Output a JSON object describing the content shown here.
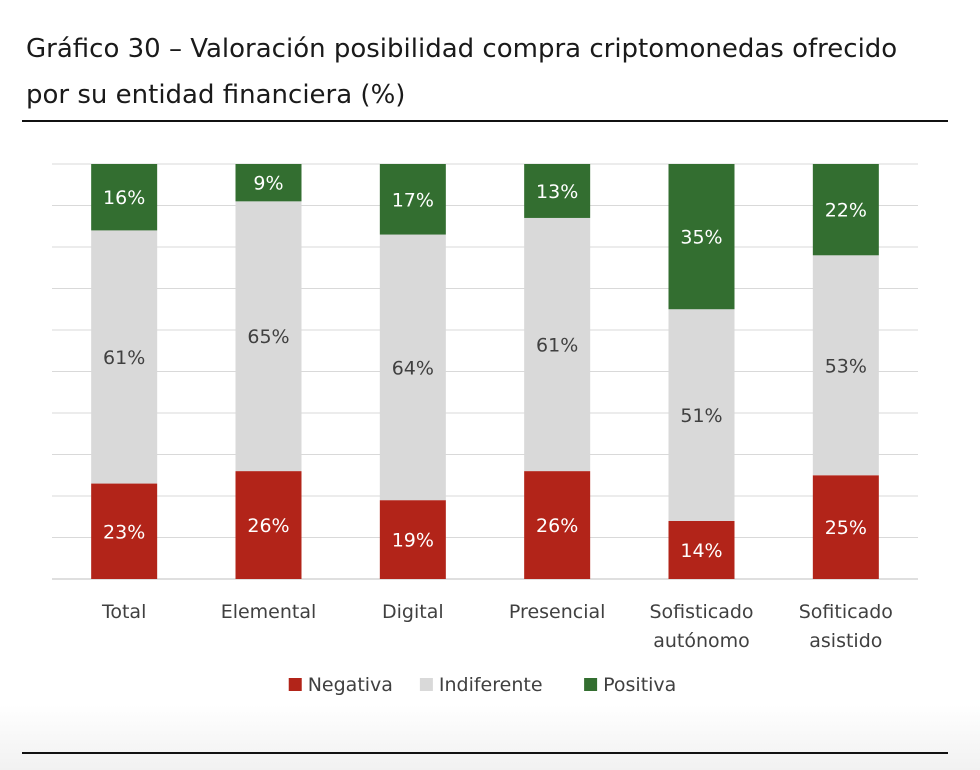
{
  "title": "Gráfico 30 – Valoración posibilidad compra criptomonedas ofrecido por su entidad financiera (%)",
  "chart_data": {
    "type": "bar",
    "stacked": true,
    "title": "Gráfico 30 – Valoración posibilidad compra criptomonedas ofrecido por su entidad financiera (%)",
    "categories": [
      [
        "Total"
      ],
      [
        "Elemental"
      ],
      [
        "Digital"
      ],
      [
        "Presencial"
      ],
      [
        "Sofisticado",
        "autónomo"
      ],
      [
        "Sofiticado",
        "asistido"
      ]
    ],
    "series": [
      {
        "name": "Negativa",
        "color": "#b22419",
        "values": [
          23,
          26,
          19,
          26,
          14,
          25
        ],
        "labels": [
          "23%",
          "26%",
          "19%",
          "26%",
          "14%",
          "25%"
        ]
      },
      {
        "name": "Indiferente",
        "color": "#d9d9d9",
        "values": [
          61,
          65,
          64,
          61,
          51,
          53
        ],
        "labels": [
          "61%",
          "65%",
          "64%",
          "61%",
          "51%",
          "53%"
        ]
      },
      {
        "name": "Positiva",
        "color": "#336e30",
        "values": [
          16,
          9,
          17,
          13,
          35,
          22
        ],
        "labels": [
          "16%",
          "9%",
          "17%",
          "13%",
          "35%",
          "22%"
        ]
      }
    ],
    "ylim": [
      0,
      100
    ],
    "grid": true,
    "legend": "bottom"
  }
}
